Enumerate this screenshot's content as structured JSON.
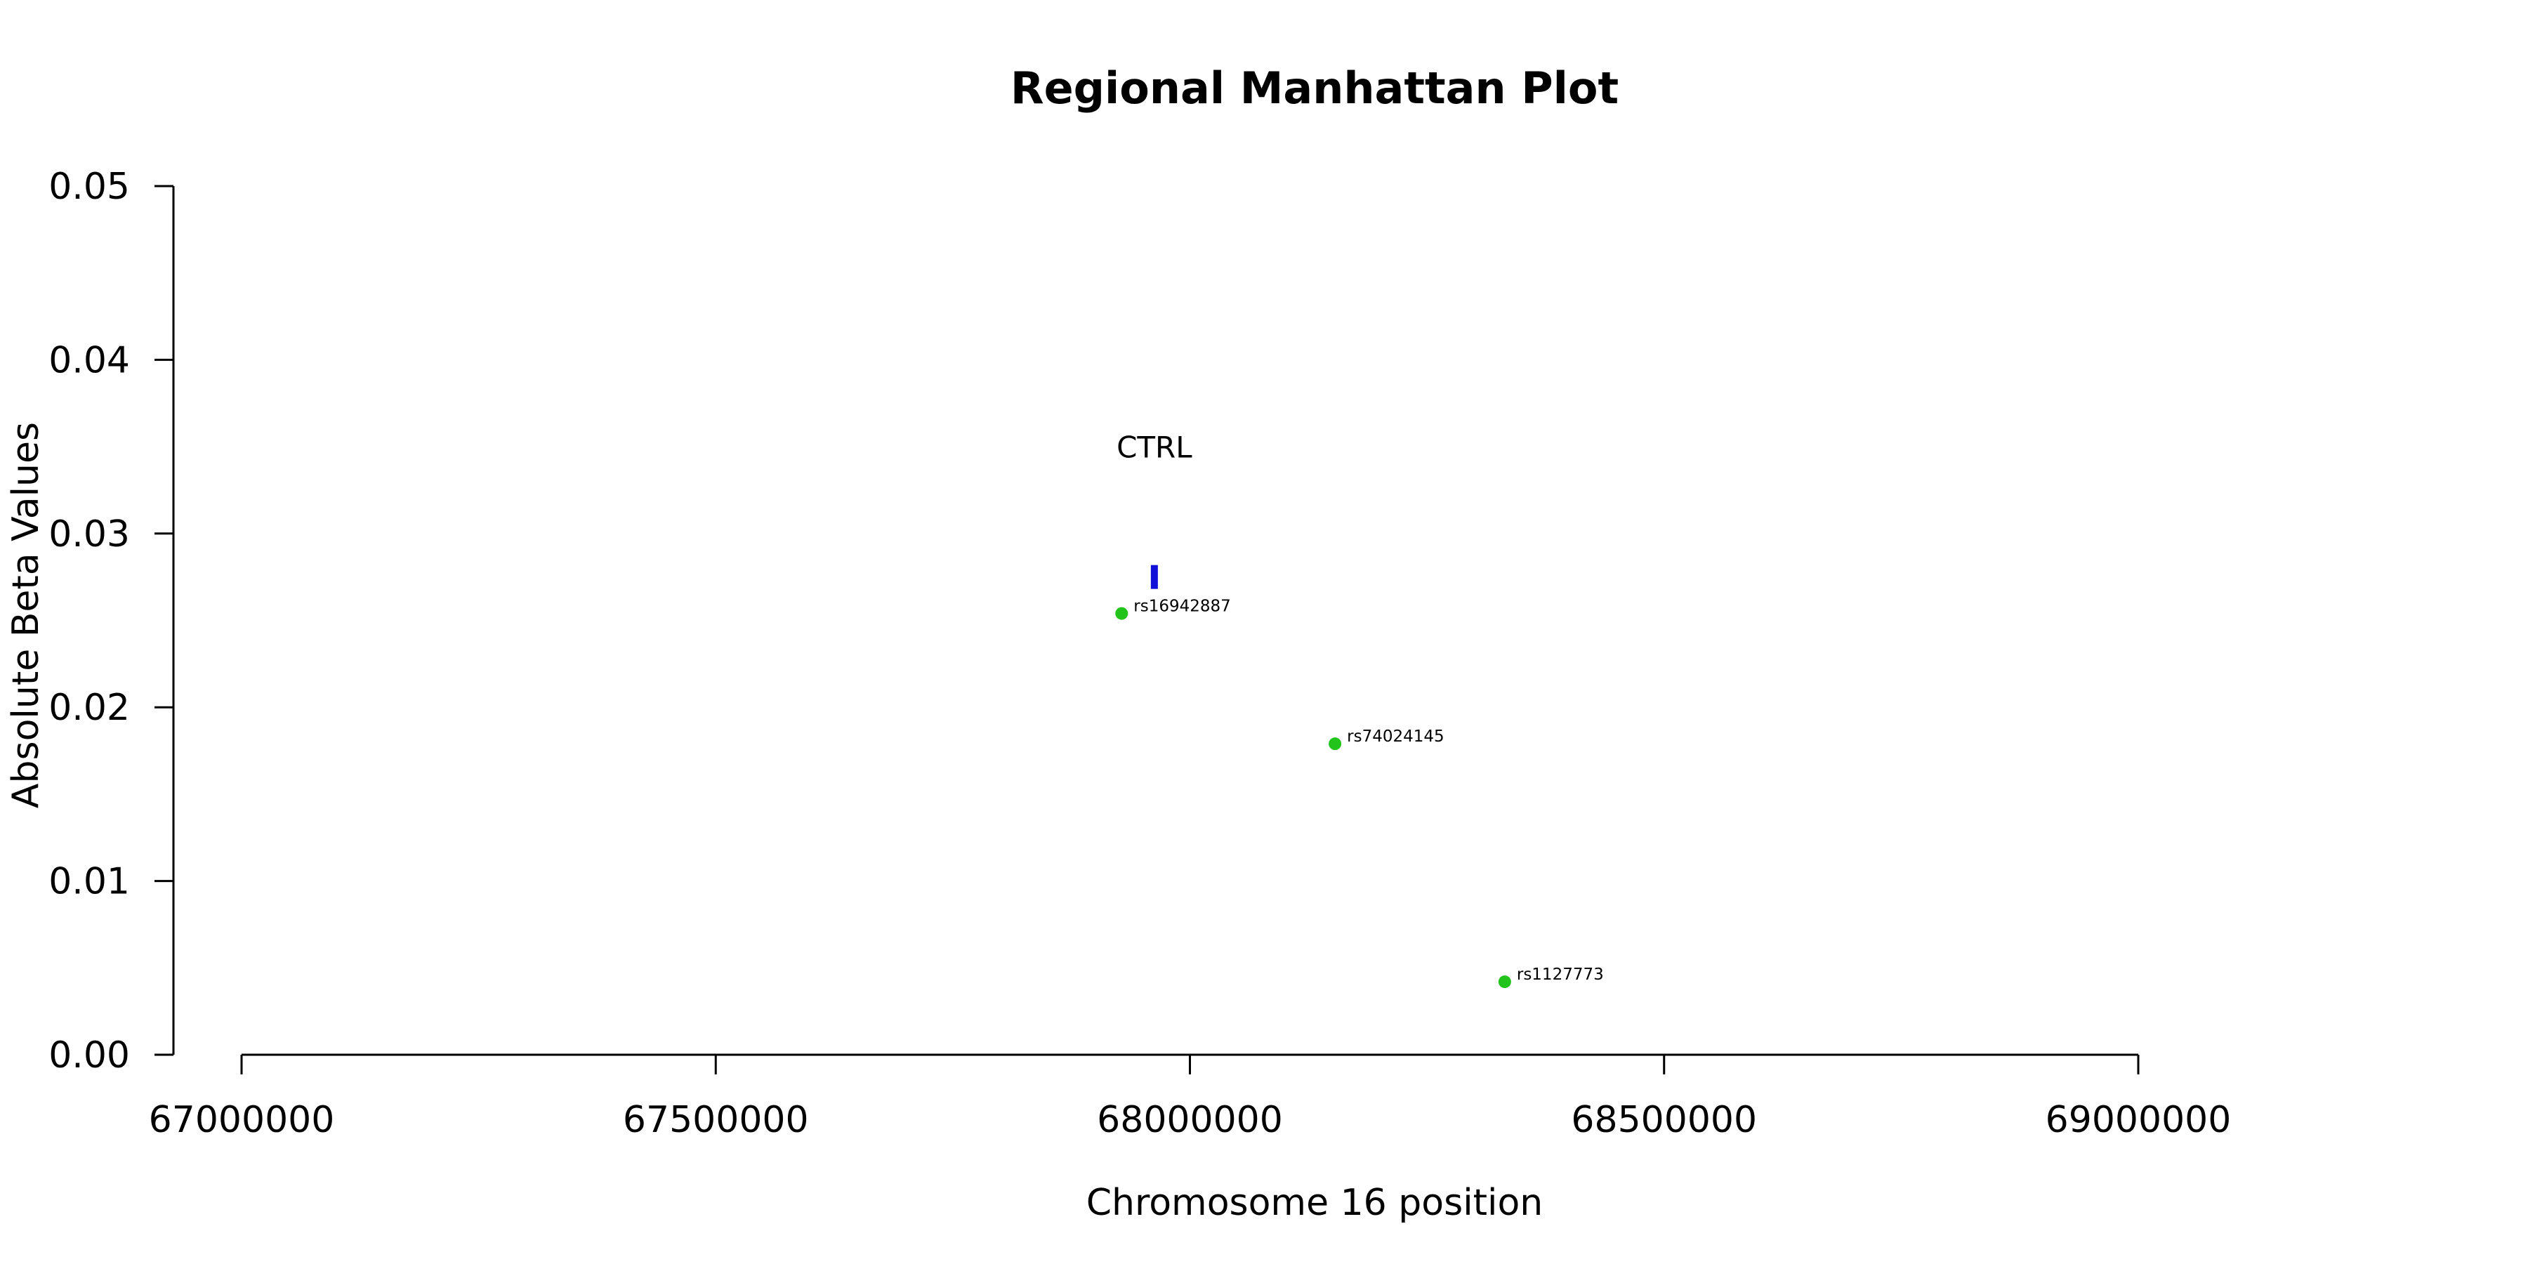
{
  "chart_data": {
    "type": "scatter",
    "title": "Regional Manhattan Plot",
    "xlabel": "Chromosome 16 position",
    "ylabel": "Absolute Beta Values",
    "xlim": [
      67000000,
      69000000
    ],
    "ylim": [
      0,
      0.05
    ],
    "x_ticks": [
      67000000,
      67500000,
      68000000,
      68500000,
      69000000
    ],
    "x_tick_labels": [
      "67000000",
      "67500000",
      "68000000",
      "68500000",
      "69000000"
    ],
    "y_ticks": [
      0,
      0.01,
      0.02,
      0.03,
      0.04,
      0.05
    ],
    "y_tick_labels": [
      "0.00",
      "0.01",
      "0.02",
      "0.03",
      "0.04",
      "0.05"
    ],
    "grid": false,
    "points": [
      {
        "label": "rs16942887",
        "x": 67928000,
        "y": 0.0254,
        "color": "#22c41c"
      },
      {
        "label": "rs74024145",
        "x": 68153000,
        "y": 0.0179,
        "color": "#22c41c"
      },
      {
        "label": "rs1127773",
        "x": 68332000,
        "y": 0.0042,
        "color": "#22c41c"
      }
    ],
    "genes": [
      {
        "name": "CTRL",
        "start": 67961500,
        "end": 67963500,
        "y": 0.0275,
        "color": "#1010d8"
      }
    ]
  }
}
